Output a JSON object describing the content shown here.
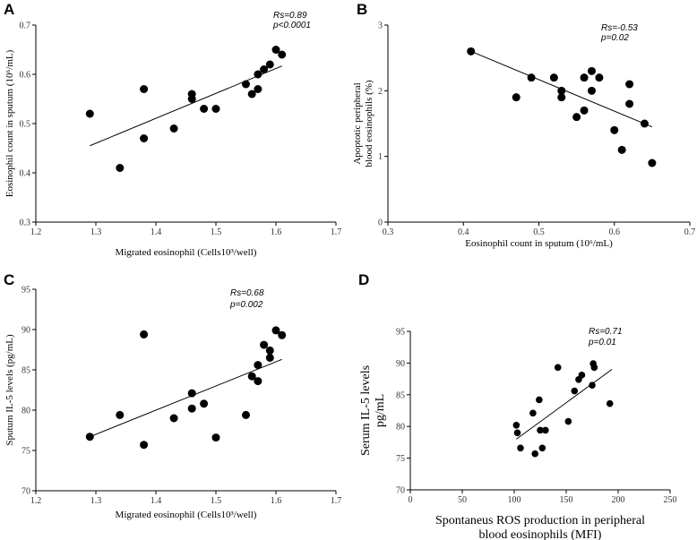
{
  "chart_data": [
    {
      "panel": "A",
      "type": "scatter",
      "xlabel": "Migrated eosinophil (Cells10³/well)",
      "ylabel": "Eosinophil count in sputum (10⁶/mL)",
      "xlim": [
        1.2,
        1.7
      ],
      "ylim": [
        0.3,
        0.7
      ],
      "xticks": [
        "1.2",
        "1.3",
        "1.4",
        "1.5",
        "1.6",
        "1.7"
      ],
      "yticks": [
        "0.3",
        "0.4",
        "0.5",
        "0.6",
        "0.7"
      ],
      "annotation": [
        "Rs=0.89",
        "p<0.0001"
      ],
      "points": [
        [
          1.29,
          0.52
        ],
        [
          1.34,
          0.41
        ],
        [
          1.38,
          0.57
        ],
        [
          1.38,
          0.47
        ],
        [
          1.43,
          0.49
        ],
        [
          1.46,
          0.56
        ],
        [
          1.46,
          0.55
        ],
        [
          1.48,
          0.53
        ],
        [
          1.5,
          0.53
        ],
        [
          1.55,
          0.58
        ],
        [
          1.56,
          0.56
        ],
        [
          1.57,
          0.6
        ],
        [
          1.57,
          0.57
        ],
        [
          1.58,
          0.61
        ],
        [
          1.59,
          0.62
        ],
        [
          1.6,
          0.65
        ],
        [
          1.61,
          0.64
        ]
      ],
      "fit_line": [
        [
          1.29,
          0.455
        ],
        [
          1.61,
          0.617
        ]
      ]
    },
    {
      "panel": "B",
      "type": "scatter",
      "xlabel": "Eosinophil count in sputum (10⁶/mL)",
      "ylabel": [
        "Apoptotic peripheral",
        "blood eosinophils (%)"
      ],
      "xlim": [
        0.3,
        0.7
      ],
      "ylim": [
        0,
        3
      ],
      "xticks": [
        "0.3",
        "0.4",
        "0.5",
        "0.6",
        "0.7"
      ],
      "yticks": [
        "0",
        "1",
        "2",
        "3"
      ],
      "annotation": [
        "Rs=-0.53",
        "p=0.02"
      ],
      "points": [
        [
          0.41,
          2.6
        ],
        [
          0.47,
          1.9
        ],
        [
          0.49,
          2.2
        ],
        [
          0.52,
          2.2
        ],
        [
          0.53,
          2.0
        ],
        [
          0.53,
          1.9
        ],
        [
          0.55,
          1.6
        ],
        [
          0.56,
          2.2
        ],
        [
          0.56,
          1.7
        ],
        [
          0.57,
          2.3
        ],
        [
          0.57,
          2.0
        ],
        [
          0.58,
          2.2
        ],
        [
          0.6,
          1.4
        ],
        [
          0.61,
          1.1
        ],
        [
          0.62,
          2.1
        ],
        [
          0.62,
          1.8
        ],
        [
          0.64,
          1.5
        ],
        [
          0.65,
          0.9
        ]
      ],
      "fit_line": [
        [
          0.41,
          2.6
        ],
        [
          0.65,
          1.45
        ]
      ]
    },
    {
      "panel": "C",
      "type": "scatter",
      "xlabel": "Migrated eosinophil (Cells10³/well)",
      "ylabel": "Sputum IL-5 levels (pg/mL)",
      "xlim": [
        1.2,
        1.7
      ],
      "ylim": [
        70,
        95
      ],
      "xticks": [
        "1.2",
        "1.3",
        "1.4",
        "1.5",
        "1.6",
        "1.7"
      ],
      "yticks": [
        "70",
        "75",
        "80",
        "85",
        "90",
        "95"
      ],
      "annotation": [
        "Rs=0.68",
        "p=0.002"
      ],
      "points": [
        [
          1.29,
          76.7
        ],
        [
          1.34,
          79.4
        ],
        [
          1.38,
          89.4
        ],
        [
          1.38,
          75.7
        ],
        [
          1.43,
          79.0
        ],
        [
          1.46,
          82.1
        ],
        [
          1.46,
          80.2
        ],
        [
          1.48,
          80.8
        ],
        [
          1.5,
          76.6
        ],
        [
          1.55,
          79.4
        ],
        [
          1.56,
          84.2
        ],
        [
          1.57,
          85.6
        ],
        [
          1.57,
          83.6
        ],
        [
          1.58,
          88.1
        ],
        [
          1.59,
          87.4
        ],
        [
          1.59,
          86.5
        ],
        [
          1.6,
          89.9
        ],
        [
          1.61,
          89.3
        ]
      ],
      "fit_line": [
        [
          1.29,
          76.7
        ],
        [
          1.61,
          86.3
        ]
      ]
    },
    {
      "panel": "D",
      "type": "scatter",
      "xlabel": [
        "Spontaneus ROS production in peripheral",
        "blood eosinophils (MFI)"
      ],
      "ylabel": [
        "Serum IL-5 levels",
        "pg/mL"
      ],
      "xlim": [
        0,
        250
      ],
      "ylim": [
        70,
        95
      ],
      "xticks": [
        "0",
        "50",
        "100",
        "150",
        "200",
        "250"
      ],
      "yticks": [
        "70",
        "75",
        "80",
        "85",
        "90",
        "95"
      ],
      "annotation": [
        "Rs=0.71",
        "p=0.01"
      ],
      "points": [
        [
          102,
          80.2
        ],
        [
          103,
          79.0
        ],
        [
          106,
          76.6
        ],
        [
          118,
          82.1
        ],
        [
          120,
          75.7
        ],
        [
          124,
          84.2
        ],
        [
          125,
          79.4
        ],
        [
          127,
          76.6
        ],
        [
          130,
          79.4
        ],
        [
          142,
          89.3
        ],
        [
          152,
          80.8
        ],
        [
          158,
          85.6
        ],
        [
          162,
          87.4
        ],
        [
          165,
          88.1
        ],
        [
          175,
          86.5
        ],
        [
          176,
          89.9
        ],
        [
          177,
          89.3
        ],
        [
          192,
          83.6
        ]
      ],
      "fit_line": [
        [
          102,
          78.0
        ],
        [
          194,
          89.0
        ]
      ]
    }
  ]
}
